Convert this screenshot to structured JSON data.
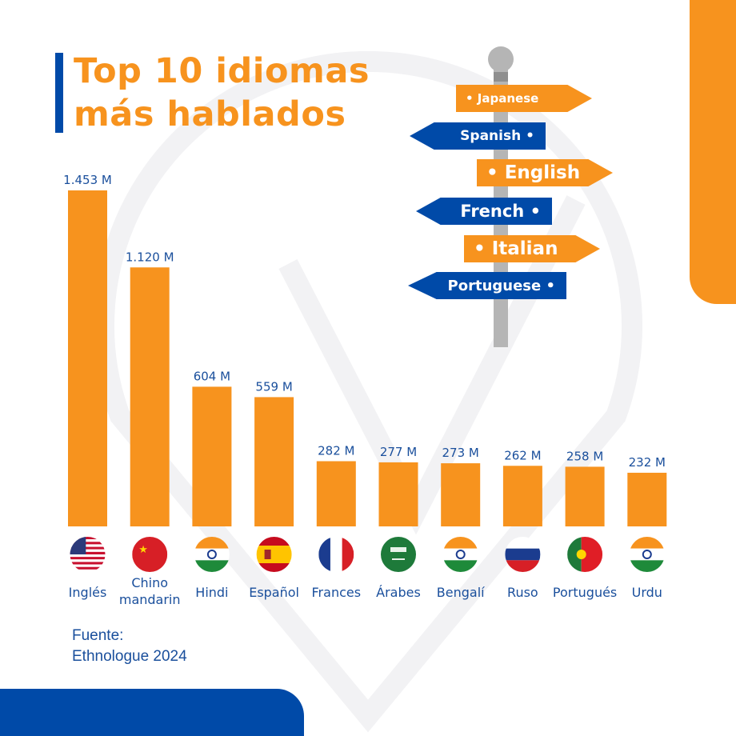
{
  "title": {
    "line1": "Top 10 idiomas",
    "line2": "más hablados"
  },
  "signpost": {
    "signs": [
      {
        "text": "• Japanese",
        "direction": "right",
        "color": "#f7931e"
      },
      {
        "text": "Spanish •",
        "direction": "left",
        "color": "#004aa8"
      },
      {
        "text": "• English",
        "direction": "right",
        "color": "#f7931e"
      },
      {
        "text": "French •",
        "direction": "left",
        "color": "#004aa8"
      },
      {
        "text": "• Italian",
        "direction": "right",
        "color": "#f7931e"
      },
      {
        "text": "Portuguese •",
        "direction": "left",
        "color": "#004aa8"
      }
    ]
  },
  "chart_data": {
    "type": "bar",
    "title": "Top 10 idiomas más hablados",
    "xlabel": "",
    "ylabel": "",
    "unit": "millones de hablantes",
    "ylim": [
      0,
      1453
    ],
    "grid": false,
    "categories": [
      "Inglés",
      "Chino mandarin",
      "Hindi",
      "Español",
      "Frances",
      "Árabes",
      "Bengalí",
      "Ruso",
      "Portugués",
      "Urdu"
    ],
    "category_lines": [
      [
        "Inglés"
      ],
      [
        "Chino",
        "mandarin"
      ],
      [
        "Hindi"
      ],
      [
        "Español"
      ],
      [
        "Frances"
      ],
      [
        "Árabes"
      ],
      [
        "Bengalí"
      ],
      [
        "Ruso"
      ],
      [
        "Portugués"
      ],
      [
        "Urdu"
      ]
    ],
    "values": [
      1453,
      1120,
      604,
      559,
      282,
      277,
      273,
      262,
      258,
      232
    ],
    "value_labels": [
      "1.453 M",
      "1.120 M",
      "604 M",
      "559 M",
      "282 M",
      "277 M",
      "273 M",
      "262 M",
      "258 M",
      "232 M"
    ],
    "flags": [
      "us-flag-icon",
      "china-flag-icon",
      "india-flag-icon",
      "spain-flag-icon",
      "france-flag-icon",
      "saudi-arabia-flag-icon",
      "india-flag-icon",
      "russia-flag-icon",
      "portugal-flag-icon",
      "india-flag-icon"
    ],
    "bar_color": "#f7931e",
    "label_color": "#1a4f9c"
  },
  "source": {
    "line1": "Fuente:",
    "line2": "Ethnologue 2024"
  }
}
